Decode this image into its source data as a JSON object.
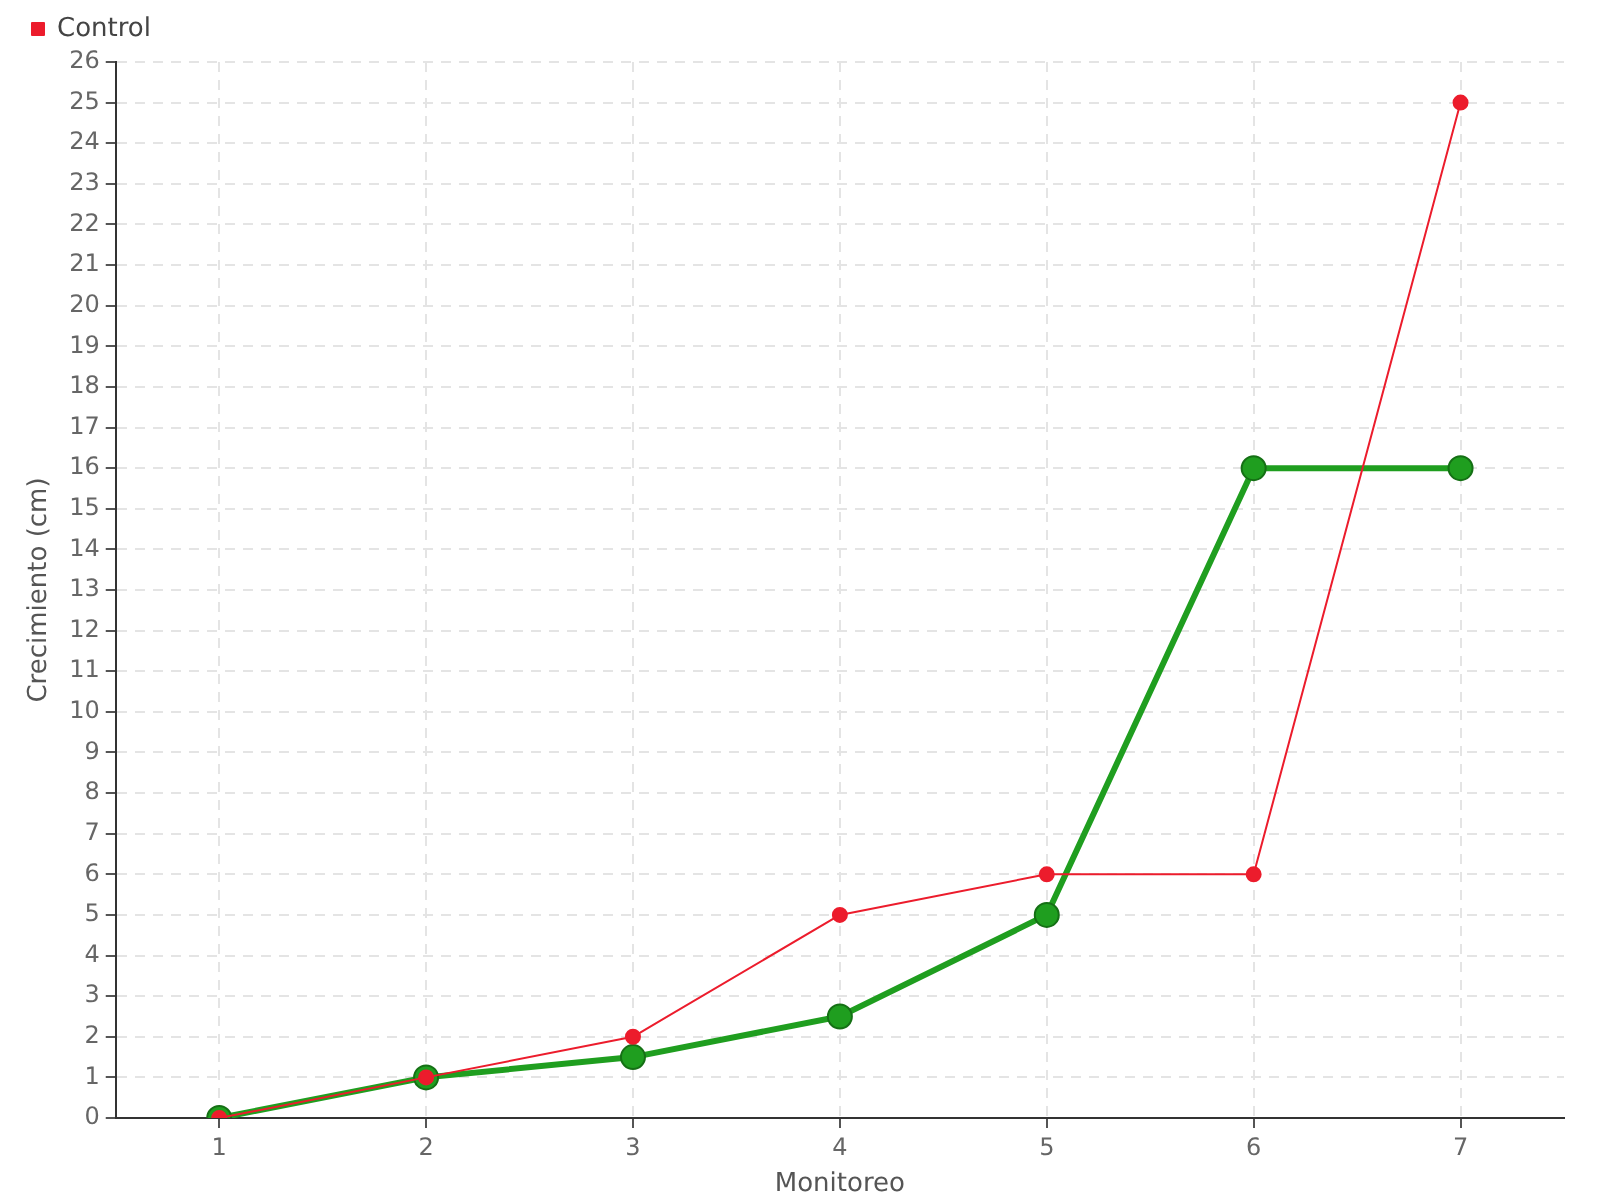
{
  "chart_data": {
    "type": "line",
    "xlabel": "Monitoreo",
    "ylabel": "Crecimiento (cm)",
    "categories": [
      "1",
      "2",
      "3",
      "4",
      "5",
      "6",
      "7"
    ],
    "series": [
      {
        "color": "#1f9e1f",
        "values": [
          0,
          1,
          1.5,
          2.5,
          5,
          16,
          16
        ]
      },
      {
        "name": "Control",
        "color": "#ec1c2c",
        "values": [
          0,
          1,
          2,
          5,
          6,
          6,
          25
        ]
      }
    ],
    "ylim": [
      0,
      26
    ],
    "yticks": [
      0,
      1,
      2,
      3,
      4,
      5,
      6,
      7,
      8,
      9,
      10,
      11,
      12,
      13,
      14,
      15,
      16,
      17,
      18,
      19,
      20,
      21,
      22,
      23,
      24,
      25,
      26
    ],
    "grid": true,
    "legend": "top left",
    "marker": "circle",
    "line_style": "solid"
  }
}
